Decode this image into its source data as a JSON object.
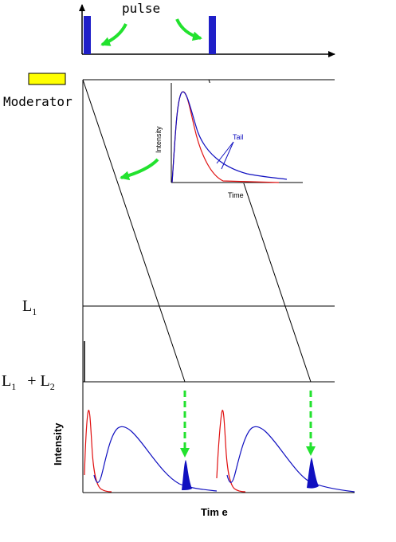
{
  "labels": {
    "pulse": "pulse",
    "moderator": "Moderator",
    "l1": "L",
    "l1_sub": "1",
    "l1_l2_a": "L",
    "l1_l2_a_sub": "1",
    "l1_l2_plus": "+ L",
    "l1_l2_b_sub": "2",
    "intensity_bottom": "Intensity",
    "time_bottom": "Tim e"
  },
  "inset": {
    "ylabel": "Intensity",
    "xlabel": "Time",
    "tail_label": "Tail"
  },
  "colors": {
    "pulse_bar": "#1f1fc8",
    "arrow_green": "#22e22e",
    "moderator_box": "#ffff00",
    "curve_red": "#e01010",
    "curve_blue": "#1010c0",
    "axis": "#000000"
  }
}
